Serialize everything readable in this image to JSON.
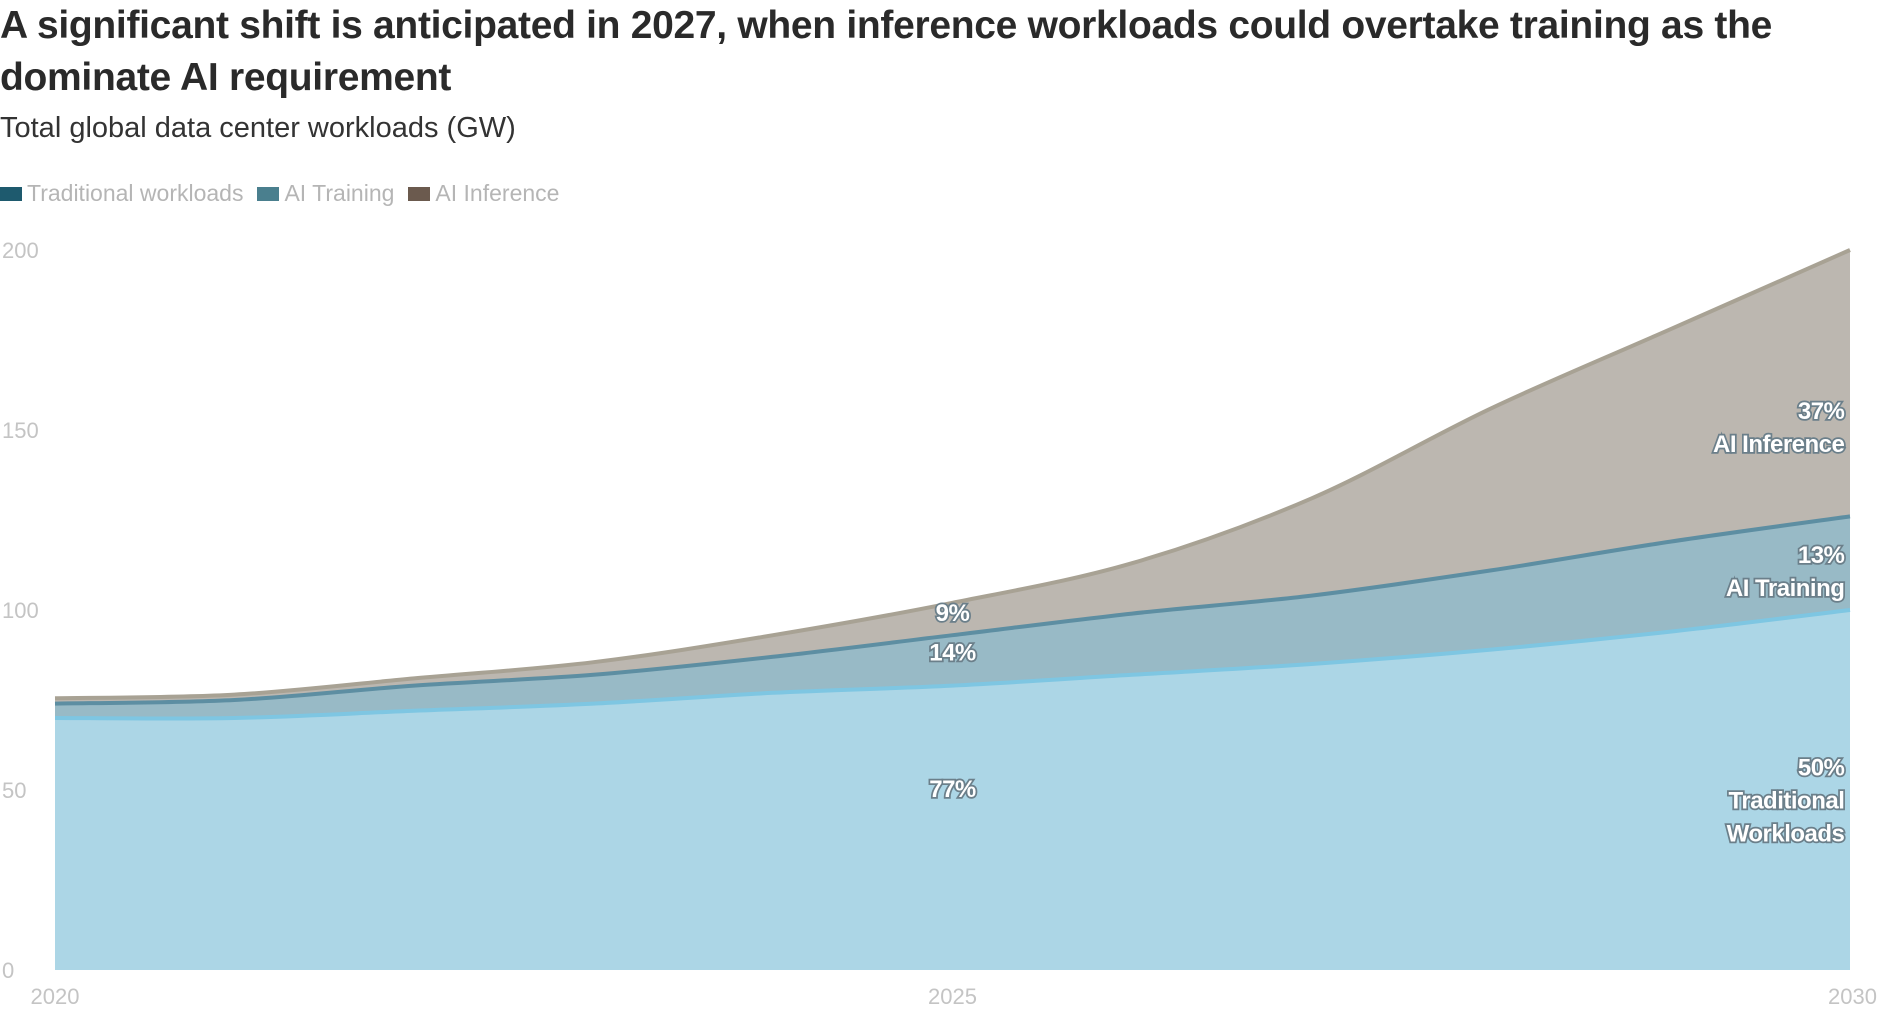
{
  "chart_data": {
    "type": "area",
    "stacked": true,
    "title": "A significant shift is anticipated in 2027, when inference workloads could overtake training as the dominate AI requirement",
    "subtitle": "Total global data center workloads (GW)",
    "xlabel": "",
    "ylabel": "",
    "x": [
      2020,
      2021,
      2022,
      2023,
      2024,
      2025,
      2026,
      2027,
      2028,
      2029,
      2030
    ],
    "xlim": [
      2020,
      2030
    ],
    "ylim": [
      0,
      200
    ],
    "x_ticks": [
      "2020",
      "2025",
      "2030"
    ],
    "y_ticks": [
      "0",
      "50",
      "100",
      "150",
      "200"
    ],
    "grid": false,
    "legend_position": "top-left",
    "series": [
      {
        "name": "Traditional workloads",
        "color": "#acd6e6",
        "line_color": "#7ec6e2",
        "values": [
          70,
          70,
          72,
          74,
          77,
          79,
          82,
          85,
          89,
          94,
          100
        ]
      },
      {
        "name": "AI Training",
        "color": "#98bac6",
        "line_color": "#5d8ea2",
        "values": [
          4,
          5,
          7,
          8,
          10,
          14,
          17,
          19,
          22,
          25,
          26
        ]
      },
      {
        "name": "AI Inference",
        "color": "#bcb7b0",
        "line_color": "#a8a294",
        "values": [
          1.5,
          1.5,
          2,
          3.5,
          6,
          9,
          14,
          27,
          45,
          59,
          74
        ]
      }
    ],
    "legend_swatches": [
      "#1e5a6e",
      "#4a7f8e",
      "#6b5a4e"
    ],
    "annotations": [
      {
        "series": "AI Inference",
        "x": 2025,
        "y": 97,
        "text": "9%"
      },
      {
        "series": "AI Training",
        "x": 2025,
        "y": 86,
        "text": "14%"
      },
      {
        "series": "Traditional workloads",
        "x": 2025,
        "y": 48,
        "text": "77%"
      },
      {
        "series": "AI Inference",
        "x": 2029.2,
        "y": 153,
        "lines": [
          "37%",
          "AI Inference"
        ]
      },
      {
        "series": "AI Training",
        "x": 2029.2,
        "y": 113,
        "lines": [
          "13%",
          "AI Training"
        ]
      },
      {
        "series": "Traditional workloads",
        "x": 2029.2,
        "y": 54,
        "lines": [
          "50%",
          "Traditional",
          "Workloads"
        ]
      }
    ]
  }
}
